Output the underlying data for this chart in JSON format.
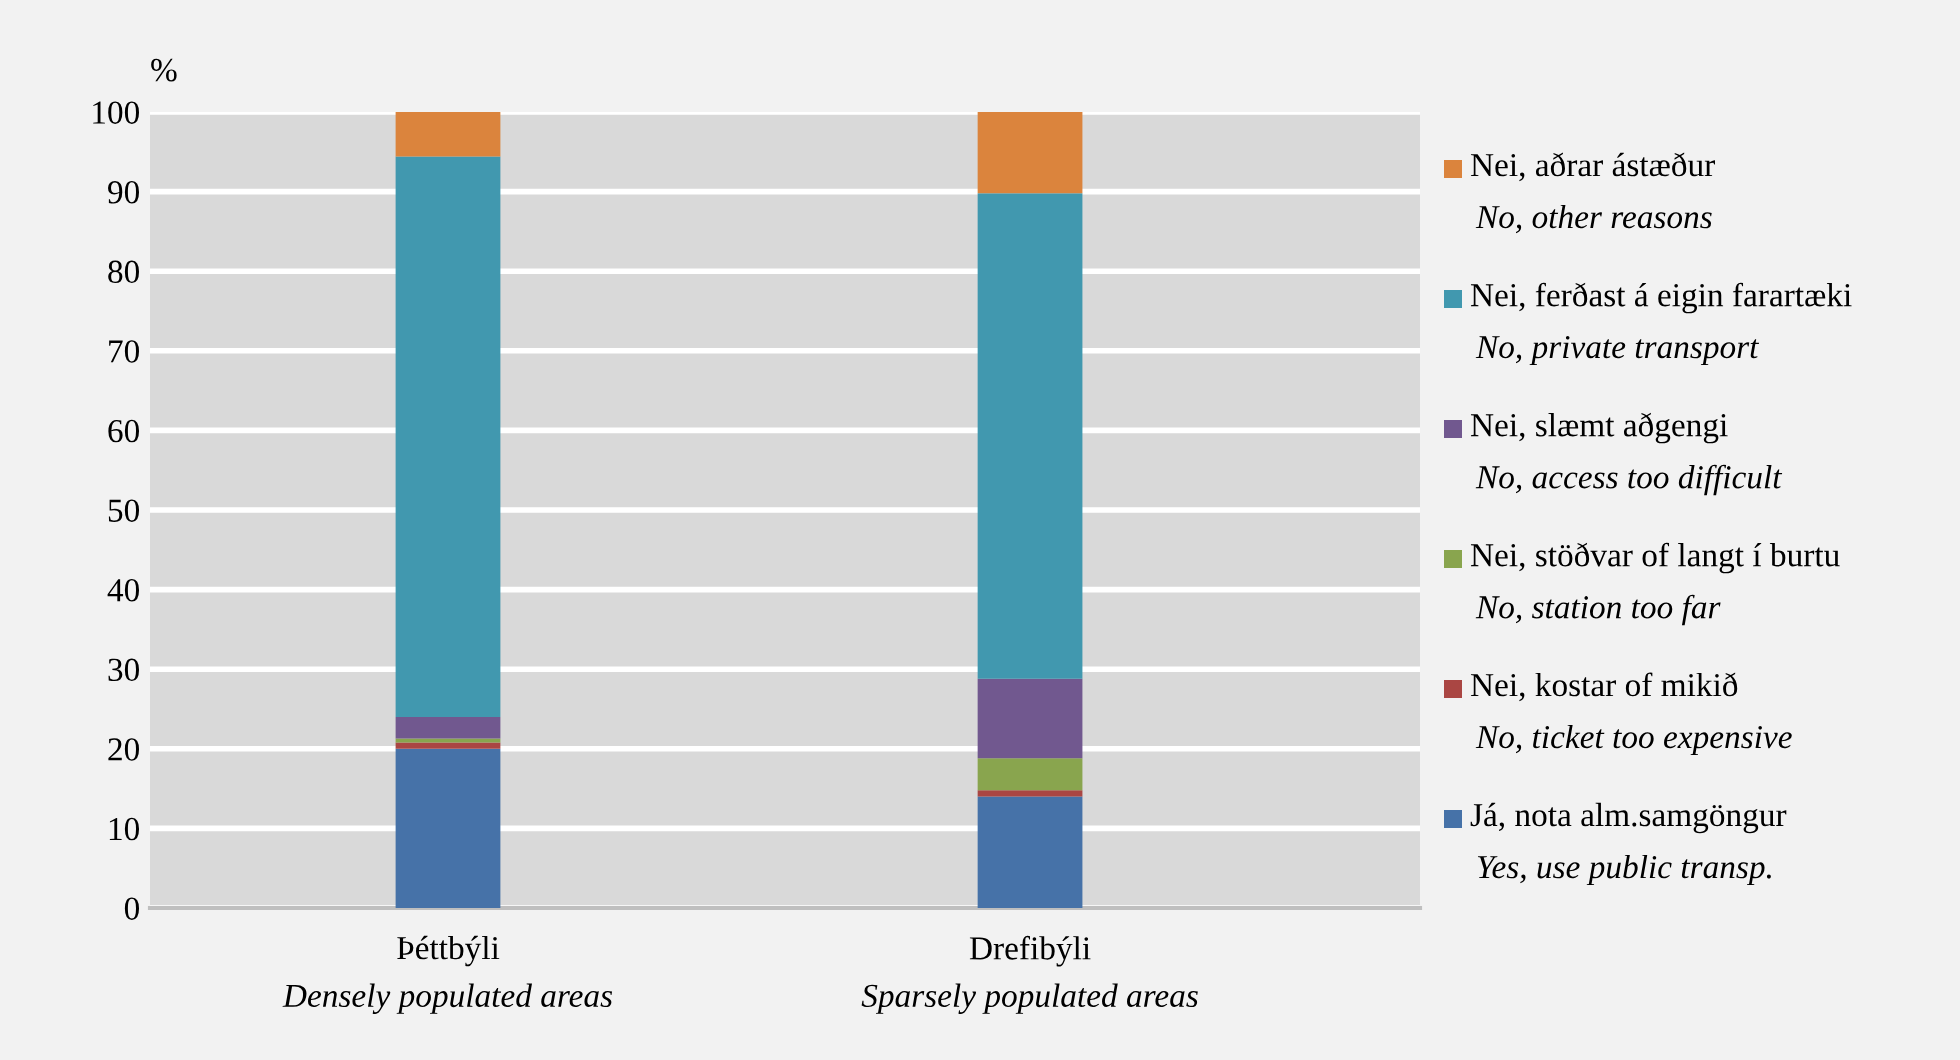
{
  "chart_data": {
    "type": "bar",
    "stacked": true,
    "ylabel": "%",
    "categories": [
      "Þéttbýli\nDensely populated areas",
      "Drefibýli\nSparsely populated areas"
    ],
    "ylim": [
      0,
      100
    ],
    "yticks": [
      0,
      10,
      20,
      30,
      40,
      50,
      60,
      70,
      80,
      90,
      100
    ],
    "grid": "y",
    "legend": "right",
    "series": [
      {
        "name": "Já, nota alm.samgöngur\nYes, use public transp.",
        "color": "#4672a8",
        "values": [
          20,
          14
        ]
      },
      {
        "name": "Nei, kostar of mikið\nNo, ticket too expensive",
        "color": "#aa4643",
        "values": [
          0.8,
          0.8
        ]
      },
      {
        "name": "Nei, stöðvar of langt í burtu\nNo, station too far",
        "color": "#89a54e",
        "values": [
          0.5,
          4
        ]
      },
      {
        "name": "Nei, slæmt aðgengi\nNo, access too difficult",
        "color": "#71588f",
        "values": [
          2.7,
          10
        ]
      },
      {
        "name": "Nei, ferðast á eigin farartæki\nNo, private transport",
        "color": "#4198af",
        "values": [
          70.4,
          61
        ]
      },
      {
        "name": "Nei, aðrar ástæður\nNo, other reasons",
        "color": "#db843d",
        "values": [
          5.6,
          10.2
        ]
      }
    ]
  }
}
